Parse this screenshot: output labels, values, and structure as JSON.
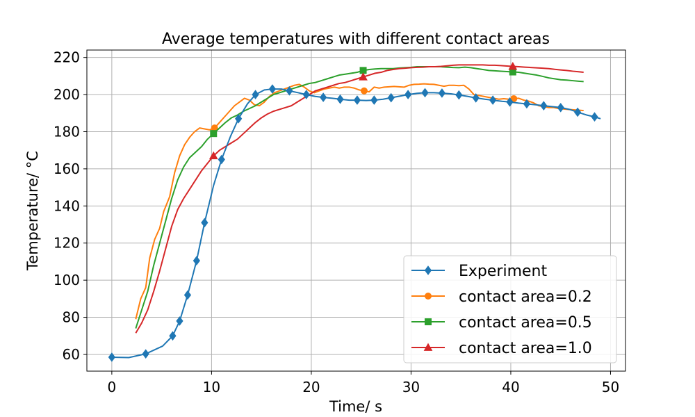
{
  "chart_data": {
    "type": "line",
    "title": "Average temperatures with different contact areas",
    "xlabel": "Time/ s",
    "ylabel": "Temperature/ °C",
    "xlim": [
      -2.5,
      51.5
    ],
    "ylim": [
      51,
      224
    ],
    "xticks": [
      0,
      10,
      20,
      30,
      40,
      50
    ],
    "yticks": [
      60,
      80,
      100,
      120,
      140,
      160,
      180,
      200,
      220
    ],
    "grid": true,
    "legend_position": "lower-right",
    "series": [
      {
        "name": "Experiment",
        "color": "#1f77b4",
        "marker": "diamond",
        "x": [
          0,
          1.7,
          3.4,
          5.1,
          6.1,
          6.8,
          7.6,
          8.5,
          9.3,
          10.2,
          11.0,
          11.9,
          12.7,
          13.6,
          14.4,
          15.3,
          16.1,
          17.0,
          17.8,
          18.7,
          19.5,
          20.4,
          21.2,
          22.1,
          22.9,
          23.8,
          24.6,
          25.5,
          26.3,
          27.2,
          28.0,
          28.9,
          29.7,
          30.6,
          31.4,
          32.3,
          33.1,
          34.0,
          34.8,
          35.7,
          36.5,
          37.4,
          38.2,
          39.1,
          39.9,
          40.8,
          41.6,
          42.5,
          43.3,
          44.2,
          45.0,
          45.9,
          46.7,
          47.6,
          48.4,
          49.0
        ],
        "y": [
          58.5,
          58.3,
          60.3,
          64.5,
          70,
          78,
          92,
          110.5,
          131,
          151,
          165,
          177.5,
          187,
          195,
          200,
          202.5,
          203,
          203,
          202,
          201,
          200,
          199,
          198.5,
          198,
          197.5,
          197,
          197,
          196.8,
          197,
          197.5,
          198.3,
          199.2,
          200,
          200.7,
          201,
          201,
          200.8,
          200.4,
          199.8,
          199,
          198.2,
          197.5,
          197,
          196.4,
          196,
          195.4,
          195,
          194.5,
          194,
          193.5,
          193,
          192,
          190.5,
          189,
          188,
          187
        ]
      },
      {
        "name": "contact area=0.2",
        "color": "#ff7f0e",
        "marker": "circle",
        "x": [
          2.4,
          2.9,
          3.4,
          3.8,
          4.3,
          4.8,
          5.2,
          5.8,
          6.3,
          6.8,
          7.3,
          7.8,
          8.3,
          8.8,
          9.3,
          9.8,
          10.3,
          10.8,
          11.3,
          11.8,
          12.3,
          12.8,
          13.3,
          13.8,
          14.3,
          14.8,
          15.3,
          15.8,
          16.3,
          16.8,
          17.3,
          17.8,
          18.3,
          18.8,
          19.3,
          19.8,
          20.3,
          20.8,
          21.3,
          21.8,
          22.3,
          22.8,
          23.3,
          23.8,
          24.3,
          24.8,
          25.3,
          25.8,
          26.3,
          26.8,
          27.3,
          27.8,
          28.3,
          28.8,
          29.3,
          29.8,
          30.3,
          30.8,
          31.3,
          31.8,
          32.3,
          32.8,
          33.3,
          33.8,
          34.3,
          34.8,
          35.3,
          35.8,
          36.3,
          36.8,
          37.3,
          37.8,
          38.3,
          38.8,
          39.3,
          39.8,
          40.3,
          40.8,
          41.3,
          41.8,
          42.3,
          42.8,
          43.3,
          43.8,
          44.3,
          44.8,
          45.3,
          45.8,
          46.3,
          46.8,
          47.3
        ],
        "y": [
          79,
          90,
          96,
          112,
          122,
          128,
          137,
          145,
          158,
          167,
          173,
          177,
          180,
          182,
          181.5,
          181,
          182,
          185,
          188,
          191,
          194,
          196,
          198,
          197,
          194.5,
          194,
          196,
          199,
          201,
          202,
          203,
          204,
          205,
          205.5,
          204,
          202,
          201,
          202,
          203,
          203.5,
          204,
          203.5,
          204,
          204,
          203.5,
          202.5,
          202,
          201.5,
          204,
          203.5,
          204,
          204.2,
          204.4,
          204.2,
          204,
          205,
          205.5,
          205.6,
          205.8,
          205.6,
          205.5,
          205,
          204.5,
          205,
          205,
          204.8,
          205,
          203,
          200,
          199.5,
          199,
          198.5,
          198,
          197.5,
          197.8,
          197.5,
          197.8,
          198,
          197,
          196.5,
          195.5,
          194,
          193.5,
          193,
          193,
          192.5,
          192.2,
          192,
          191.8,
          191.6,
          191.4
        ]
      },
      {
        "name": "contact area=0.5",
        "color": "#2ca02c",
        "marker": "square",
        "x": [
          2.4,
          3.0,
          3.6,
          4.2,
          4.8,
          5.4,
          6.0,
          6.6,
          7.2,
          7.8,
          8.4,
          9.0,
          9.6,
          10.2,
          10.8,
          11.4,
          12.0,
          12.6,
          13.2,
          13.8,
          14.4,
          15.0,
          15.6,
          16.2,
          16.8,
          17.4,
          18.0,
          18.6,
          19.2,
          19.8,
          20.4,
          21.0,
          21.6,
          22.2,
          22.8,
          23.4,
          24.0,
          24.6,
          25.2,
          25.8,
          26.4,
          27.0,
          27.6,
          28.2,
          28.8,
          29.4,
          30.0,
          30.6,
          31.2,
          31.8,
          32.4,
          33.0,
          33.6,
          34.2,
          34.8,
          35.4,
          36.0,
          36.6,
          37.2,
          37.8,
          38.4,
          39.0,
          39.6,
          40.2,
          40.8,
          41.4,
          42.0,
          42.6,
          43.2,
          43.8,
          44.4,
          45.0,
          45.6,
          46.2,
          46.8,
          47.3
        ],
        "y": [
          74,
          84,
          94,
          108,
          120,
          132,
          144,
          154,
          161,
          166,
          169,
          172,
          176,
          179,
          182,
          185,
          187.5,
          189,
          191,
          192.5,
          194,
          196,
          198,
          200,
          201,
          202,
          203,
          204,
          205,
          206,
          206.5,
          207.5,
          208.5,
          209.5,
          210.5,
          211,
          211.5,
          212,
          213,
          213.5,
          213.8,
          214,
          214,
          214,
          214.3,
          214.5,
          214.7,
          215,
          215,
          215,
          215,
          215,
          214.8,
          214.6,
          214.5,
          214.8,
          214.5,
          214,
          213.5,
          213,
          212.8,
          212.6,
          212.4,
          212.2,
          212,
          211.5,
          211,
          210.5,
          209.8,
          209,
          208.5,
          208,
          207.8,
          207.5,
          207.2,
          207
        ]
      },
      {
        "name": "contact area=1.0",
        "color": "#d62728",
        "marker": "triangle",
        "x": [
          2.4,
          3.0,
          3.6,
          4.2,
          4.8,
          5.4,
          6.0,
          6.6,
          7.2,
          7.8,
          8.4,
          9.0,
          9.6,
          10.2,
          10.8,
          11.4,
          12.0,
          12.6,
          13.2,
          13.8,
          14.4,
          15.0,
          15.6,
          16.2,
          16.8,
          17.4,
          18.0,
          18.6,
          19.2,
          19.8,
          20.4,
          21.0,
          21.6,
          22.2,
          22.8,
          23.4,
          24.0,
          24.6,
          25.2,
          25.8,
          26.4,
          27.0,
          27.6,
          28.2,
          28.8,
          29.4,
          30.0,
          30.6,
          31.2,
          31.8,
          32.4,
          33.0,
          33.6,
          34.2,
          34.8,
          35.4,
          36.0,
          36.6,
          37.2,
          37.8,
          38.4,
          39.0,
          39.6,
          40.2,
          40.8,
          41.4,
          42.0,
          42.6,
          43.2,
          43.8,
          44.4,
          45.0,
          45.6,
          46.2,
          46.8,
          47.3
        ],
        "y": [
          71.5,
          77,
          84,
          94,
          105,
          117,
          129,
          138,
          144,
          149,
          154,
          159,
          163,
          167,
          170,
          172,
          174,
          176,
          179,
          182,
          185,
          187.5,
          189.5,
          191,
          192,
          193,
          194,
          196,
          198,
          200,
          202,
          203,
          204,
          205,
          206,
          206.5,
          207.5,
          208.5,
          209.5,
          210.5,
          211.5,
          212,
          213,
          213.5,
          214,
          214.2,
          214.5,
          214.7,
          214.8,
          215,
          215,
          215.2,
          215.5,
          215.8,
          216,
          216,
          216,
          216,
          216,
          215.8,
          215.8,
          215.6,
          215.4,
          215.2,
          215,
          214.8,
          214.6,
          214.4,
          214.2,
          214,
          213.6,
          213.3,
          213,
          212.6,
          212.3,
          212
        ]
      }
    ]
  }
}
